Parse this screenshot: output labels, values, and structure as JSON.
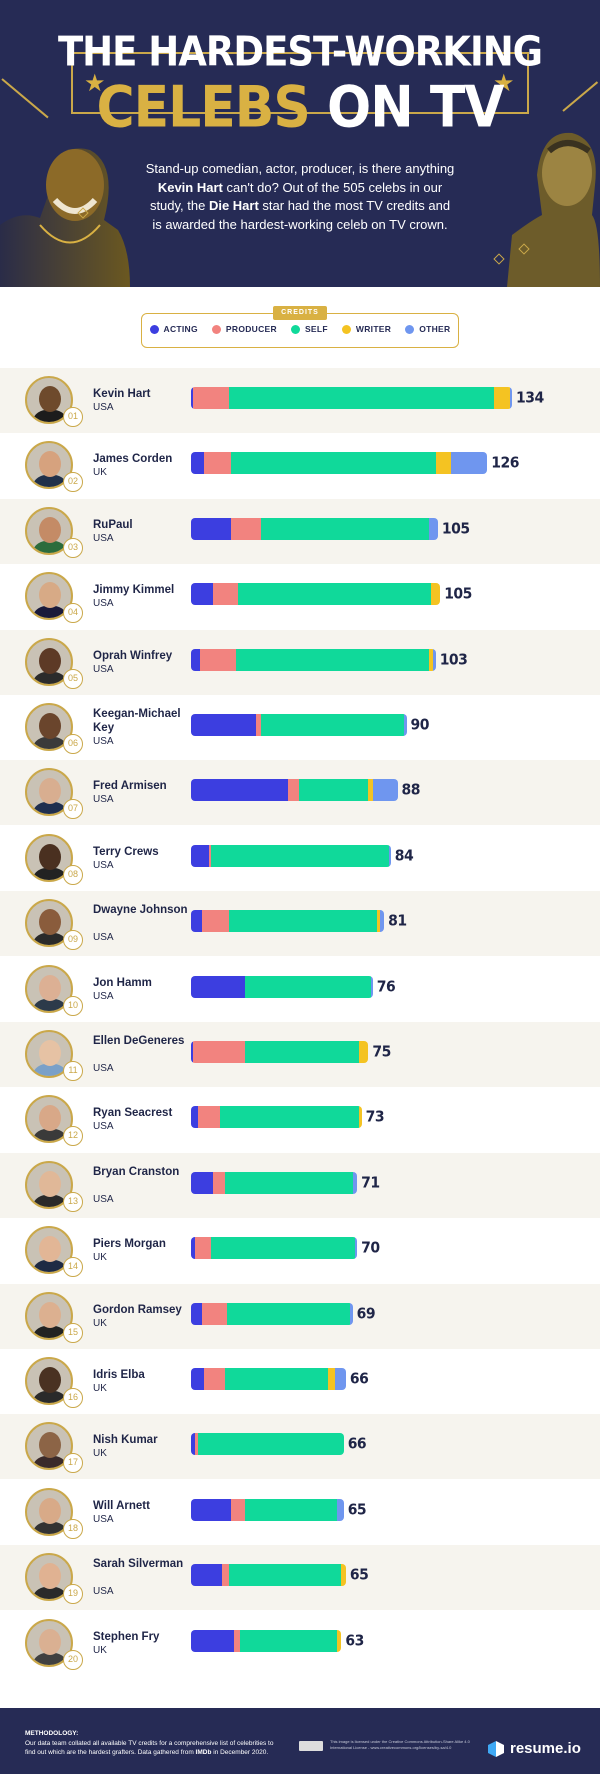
{
  "header": {
    "title_line1": "THE HARDEST-WORKING",
    "title_line2_gold": "CELEBS",
    "title_line2_white": "ON TV",
    "intro_parts": [
      "Stand-up comedian, actor, producer, is there anything ",
      "Kevin Hart",
      " can't do? Out of the 505 celebs in our study, the ",
      "Die Hart",
      " star had the most TV credits and is awarded the hardest-working celeb on TV crown."
    ]
  },
  "legend": {
    "tag": "CREDITS",
    "items": [
      {
        "label": "ACTING",
        "color": "#3c3ee0"
      },
      {
        "label": "PRODUCER",
        "color": "#f2837f"
      },
      {
        "label": "SELF",
        "color": "#10d99a"
      },
      {
        "label": "WRITER",
        "color": "#f4c322"
      },
      {
        "label": "OTHER",
        "color": "#6f96ef"
      }
    ]
  },
  "chart_data": {
    "type": "bar",
    "orientation": "horizontal",
    "stacked": true,
    "series_names": [
      "ACTING",
      "PRODUCER",
      "SELF",
      "WRITER",
      "OTHER"
    ],
    "rows": [
      {
        "rank": "01",
        "name": "Kevin Hart",
        "country": "USA",
        "total": "134",
        "values": [
          1,
          16,
          118,
          7,
          1
        ]
      },
      {
        "rank": "02",
        "name": "James Corden",
        "country": "UK",
        "total": "126",
        "values": [
          6,
          12,
          91,
          7,
          16
        ]
      },
      {
        "rank": "03",
        "name": "RuPaul",
        "country": "USA",
        "total": "105",
        "values": [
          18,
          13,
          75,
          0,
          4
        ]
      },
      {
        "rank": "04",
        "name": "Jimmy Kimmel",
        "country": "USA",
        "total": "105",
        "values": [
          10,
          11,
          86,
          4,
          0
        ]
      },
      {
        "rank": "05",
        "name": "Oprah Winfrey",
        "country": "USA",
        "total": "103",
        "values": [
          4,
          16,
          86,
          2,
          1
        ]
      },
      {
        "rank": "06",
        "name": "Keegan-Michael Key",
        "country": "USA",
        "total": "90",
        "values": [
          29,
          2,
          64,
          0,
          1
        ]
      },
      {
        "rank": "07",
        "name": "Fred Armisen",
        "country": "USA",
        "total": "88",
        "values": [
          43,
          5,
          31,
          2,
          11
        ]
      },
      {
        "rank": "08",
        "name": "Terry Crews",
        "country": "USA",
        "total": "84",
        "values": [
          8,
          1,
          79,
          0,
          1
        ]
      },
      {
        "rank": "09",
        "name": "Dwayne Johnson",
        "country": "USA",
        "total": "81",
        "values": [
          5,
          12,
          66,
          1,
          2
        ]
      },
      {
        "rank": "10",
        "name": "Jon Hamm",
        "country": "USA",
        "total": "76",
        "values": [
          24,
          0,
          56,
          0,
          1
        ]
      },
      {
        "rank": "11",
        "name": "Ellen DeGeneres",
        "country": "USA",
        "total": "75",
        "values": [
          1,
          23,
          51,
          4,
          0
        ]
      },
      {
        "rank": "12",
        "name": "Ryan Seacrest",
        "country": "USA",
        "total": "73",
        "values": [
          3,
          10,
          62,
          1,
          0
        ]
      },
      {
        "rank": "13",
        "name": "Bryan Cranston",
        "country": "USA",
        "total": "71",
        "values": [
          10,
          5,
          57,
          0,
          2
        ]
      },
      {
        "rank": "14",
        "name": "Piers Morgan",
        "country": "UK",
        "total": "70",
        "values": [
          2,
          7,
          64,
          0,
          1
        ]
      },
      {
        "rank": "15",
        "name": "Gordon Ramsey",
        "country": "UK",
        "total": "69",
        "values": [
          5,
          11,
          55,
          0,
          1
        ]
      },
      {
        "rank": "16",
        "name": "Idris Elba",
        "country": "UK",
        "total": "66",
        "values": [
          6,
          9,
          46,
          3,
          5
        ]
      },
      {
        "rank": "17",
        "name": "Nish Kumar",
        "country": "UK",
        "total": "66",
        "values": [
          2,
          1,
          65,
          0,
          0
        ]
      },
      {
        "rank": "18",
        "name": "Will Arnett",
        "country": "USA",
        "total": "65",
        "values": [
          18,
          6,
          41,
          0,
          3
        ]
      },
      {
        "rank": "19",
        "name": "Sarah Silverman",
        "country": "USA",
        "total": "65",
        "values": [
          14,
          3,
          50,
          2,
          0
        ]
      },
      {
        "rank": "20",
        "name": "Stephen Fry",
        "country": "UK",
        "total": "63",
        "values": [
          19,
          3,
          43,
          2,
          0
        ]
      }
    ]
  },
  "footer": {
    "methodology_heading": "METHODOLOGY:",
    "methodology_text_1": "Our data team collated all available TV credits for a comprehensive list of celebrities to find out which are the hardest grafters. Data gathered from ",
    "methodology_bold": "IMDb",
    "methodology_text_2": " in December 2020.",
    "license": "This image is licensed under the Creative Commons Attribution-Share Alike 4.0 International License - www.creativecommons.org/licenses/by-sa/4.0",
    "brand": "resume.io"
  }
}
